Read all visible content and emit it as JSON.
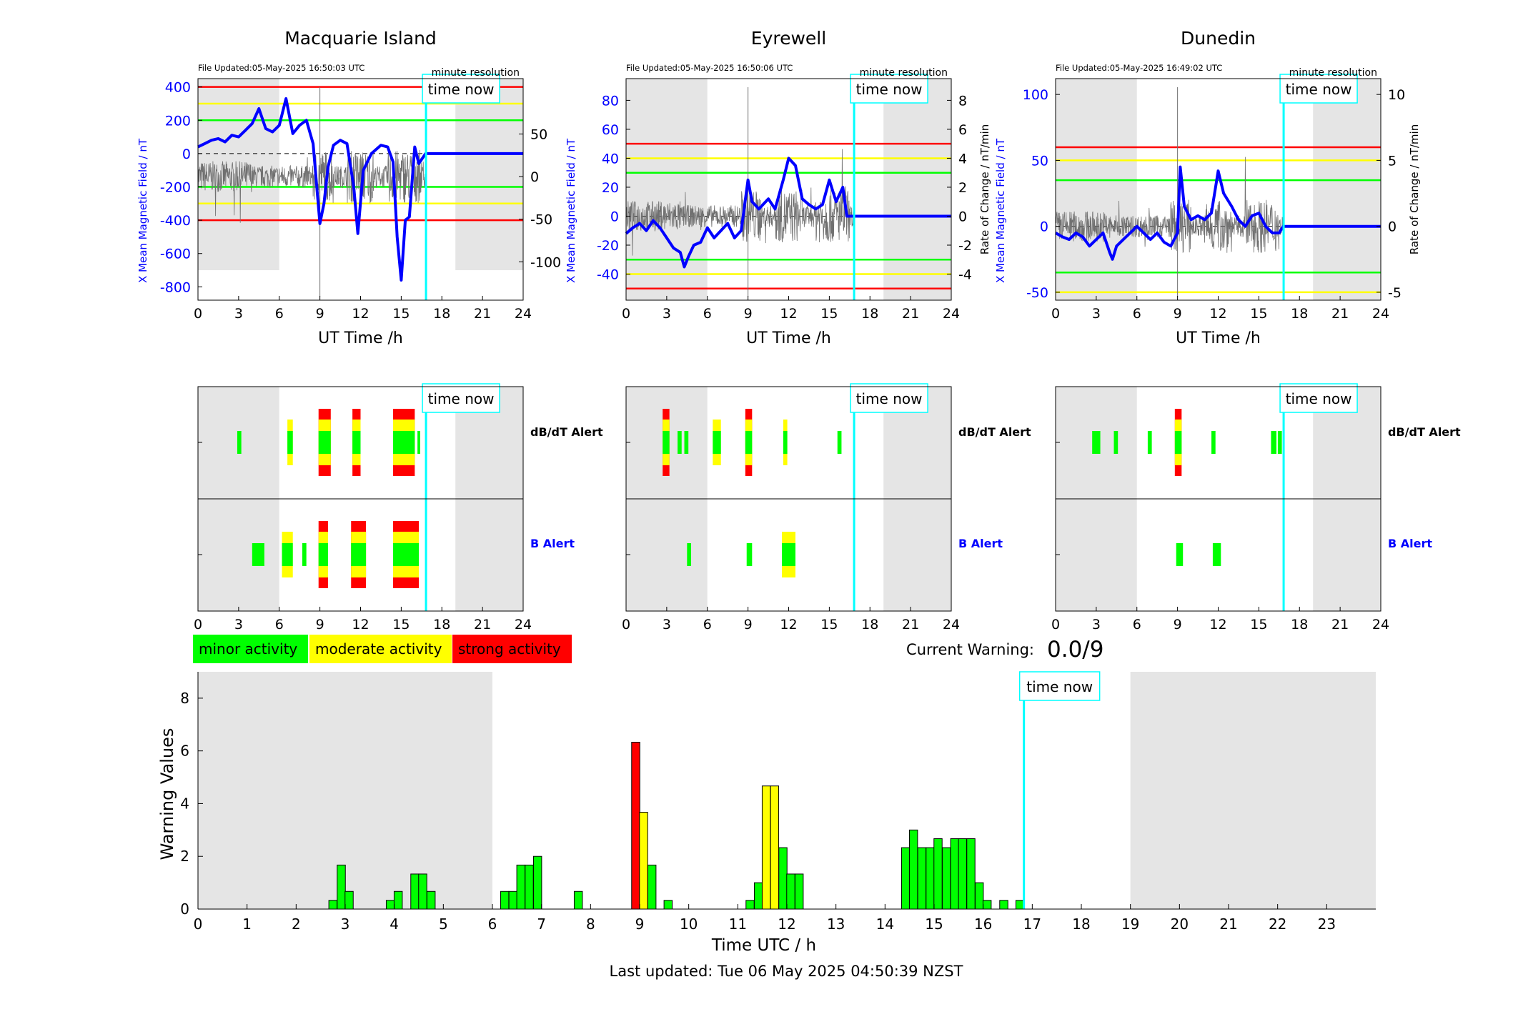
{
  "stations": [
    {
      "name": "Macquarie Island",
      "file_updated": "File Updated:05-May-2025 16:50:03 UTC",
      "resolution": "minute resolution",
      "time_now_label": "time now",
      "xlabel": "UT Time /h",
      "ylabel_left": "X Mean Magnetic Field / nT",
      "ylabel_right": "",
      "left_ylim": [
        -880,
        450
      ],
      "left_ticks": [
        "400",
        "200",
        "0",
        "-200",
        "-400",
        "-600",
        "-800"
      ],
      "left_tick_values": [
        400,
        200,
        0,
        -200,
        -400,
        -600,
        -800
      ],
      "right_ylim": [
        -145,
        115
      ],
      "right_ticks": [
        "50",
        "0",
        "-50",
        "-100"
      ],
      "right_tick_values": [
        50,
        0,
        -50,
        -100
      ],
      "thresholds": {
        "red": 400,
        "yellow": 300,
        "green": 200
      },
      "shade_ylim": [
        -700,
        450
      ],
      "mean_field": [
        [
          0,
          40
        ],
        [
          0.5,
          60
        ],
        [
          1,
          80
        ],
        [
          1.5,
          90
        ],
        [
          2,
          70
        ],
        [
          2.5,
          110
        ],
        [
          3,
          100
        ],
        [
          3.5,
          140
        ],
        [
          4,
          180
        ],
        [
          4.5,
          270
        ],
        [
          5,
          150
        ],
        [
          5.5,
          130
        ],
        [
          6,
          170
        ],
        [
          6.5,
          330
        ],
        [
          7,
          120
        ],
        [
          7.5,
          170
        ],
        [
          8,
          200
        ],
        [
          8.5,
          60
        ],
        [
          9,
          -420
        ],
        [
          9.3,
          -300
        ],
        [
          9.6,
          -80
        ],
        [
          10,
          50
        ],
        [
          10.5,
          80
        ],
        [
          11,
          60
        ],
        [
          11.5,
          -200
        ],
        [
          11.8,
          -480
        ],
        [
          12.2,
          -100
        ],
        [
          12.8,
          0
        ],
        [
          13.5,
          50
        ],
        [
          14,
          40
        ],
        [
          14.4,
          -50
        ],
        [
          14.7,
          -500
        ],
        [
          15,
          -760
        ],
        [
          15.3,
          -400
        ],
        [
          15.6,
          -380
        ],
        [
          16,
          40
        ],
        [
          16.3,
          -60
        ],
        [
          16.8,
          0
        ],
        [
          24,
          0
        ]
      ],
      "rate_of_change": "noisy trace",
      "dbdt_alerts": [
        [
          2.9,
          3.2,
          "g"
        ],
        [
          6.6,
          7.0,
          "gy"
        ],
        [
          8.9,
          9.8,
          "gyr"
        ],
        [
          11.4,
          12.0,
          "gyr"
        ],
        [
          14.4,
          16.0,
          "gyr"
        ],
        [
          16.2,
          16.4,
          "g"
        ]
      ],
      "b_alerts": [
        [
          4.0,
          4.9,
          "g"
        ],
        [
          6.2,
          7.0,
          "gy"
        ],
        [
          7.7,
          8.0,
          "g"
        ],
        [
          8.9,
          9.6,
          "gyr"
        ],
        [
          11.3,
          12.4,
          "gyr"
        ],
        [
          14.4,
          16.3,
          "gyr"
        ]
      ]
    },
    {
      "name": "Eyrewell",
      "file_updated": "File Updated:05-May-2025 16:50:06 UTC",
      "resolution": "minute resolution",
      "time_now_label": "time now",
      "xlabel": "UT Time /h",
      "ylabel_left": "X Mean Magnetic Field / nT",
      "ylabel_right": "Rate of Change / nT/min",
      "left_ylim": [
        -58,
        95
      ],
      "left_ticks": [
        "80",
        "60",
        "40",
        "20",
        "0",
        "-20",
        "-40"
      ],
      "left_tick_values": [
        80,
        60,
        40,
        20,
        0,
        -20,
        -40
      ],
      "right_ylim": [
        -5.8,
        9.5
      ],
      "right_ticks": [
        "8",
        "6",
        "4",
        "2",
        "0",
        "-2",
        "-4"
      ],
      "right_tick_values": [
        8,
        6,
        4,
        2,
        0,
        -2,
        -4
      ],
      "thresholds": {
        "red": 50,
        "yellow": 40,
        "green": 30
      },
      "shade_ylim": [
        -58,
        95
      ],
      "mean_field": [
        [
          0,
          -12
        ],
        [
          0.5,
          -8
        ],
        [
          1,
          -5
        ],
        [
          1.5,
          -10
        ],
        [
          2,
          -3
        ],
        [
          2.5,
          -8
        ],
        [
          3,
          -15
        ],
        [
          3.5,
          -22
        ],
        [
          4,
          -25
        ],
        [
          4.3,
          -35
        ],
        [
          4.6,
          -28
        ],
        [
          5,
          -20
        ],
        [
          5.5,
          -18
        ],
        [
          6,
          -8
        ],
        [
          6.5,
          -15
        ],
        [
          7,
          -10
        ],
        [
          7.5,
          -5
        ],
        [
          8,
          -15
        ],
        [
          8.5,
          -10
        ],
        [
          9,
          25
        ],
        [
          9.3,
          10
        ],
        [
          9.8,
          5
        ],
        [
          10.5,
          12
        ],
        [
          11,
          5
        ],
        [
          11.6,
          25
        ],
        [
          12,
          40
        ],
        [
          12.5,
          35
        ],
        [
          13,
          12
        ],
        [
          13.5,
          8
        ],
        [
          14,
          5
        ],
        [
          14.5,
          8
        ],
        [
          15,
          25
        ],
        [
          15.5,
          10
        ],
        [
          16,
          20
        ],
        [
          16.3,
          0
        ],
        [
          24,
          0
        ]
      ],
      "rate_of_change": "noisy trace",
      "dbdt_alerts": [
        [
          2.7,
          3.2,
          "gyr"
        ],
        [
          3.8,
          4.1,
          "g"
        ],
        [
          4.3,
          4.6,
          "g"
        ],
        [
          6.4,
          7.0,
          "gy"
        ],
        [
          8.8,
          9.3,
          "gyr"
        ],
        [
          11.6,
          11.9,
          "gy"
        ],
        [
          15.6,
          15.9,
          "g"
        ]
      ],
      "b_alerts": [
        [
          4.5,
          4.8,
          "g"
        ],
        [
          8.9,
          9.3,
          "g"
        ],
        [
          11.5,
          12.5,
          "gy"
        ]
      ]
    },
    {
      "name": "Dunedin",
      "file_updated": "File Updated:05-May-2025 16:49:02 UTC",
      "resolution": "minute resolution",
      "time_now_label": "time now",
      "xlabel": "UT Time /h",
      "ylabel_left": "X Mean Magnetic Field / nT",
      "ylabel_right": "Rate of Change / nT/min",
      "left_ylim": [
        -56,
        112
      ],
      "left_ticks": [
        "100",
        "50",
        "0",
        "-50"
      ],
      "left_tick_values": [
        100,
        50,
        0,
        -50
      ],
      "right_ylim": [
        -5.6,
        11.2
      ],
      "right_ticks": [
        "10",
        "5",
        "0",
        "-5"
      ],
      "right_tick_values": [
        10,
        5,
        0,
        -5
      ],
      "thresholds": {
        "red": 60,
        "yellow": 50,
        "green": 35
      },
      "shade_ylim": [
        -56,
        112
      ],
      "mean_field": [
        [
          0,
          -5
        ],
        [
          0.5,
          -8
        ],
        [
          1,
          -10
        ],
        [
          1.5,
          -5
        ],
        [
          2,
          -8
        ],
        [
          2.5,
          -15
        ],
        [
          3,
          -10
        ],
        [
          3.5,
          -5
        ],
        [
          4,
          -20
        ],
        [
          4.2,
          -25
        ],
        [
          4.5,
          -15
        ],
        [
          5,
          -10
        ],
        [
          5.5,
          -5
        ],
        [
          6,
          0
        ],
        [
          6.5,
          -5
        ],
        [
          7,
          -10
        ],
        [
          7.5,
          -5
        ],
        [
          8,
          -12
        ],
        [
          8.5,
          -15
        ],
        [
          9,
          -5
        ],
        [
          9.2,
          45
        ],
        [
          9.5,
          15
        ],
        [
          10,
          5
        ],
        [
          10.5,
          8
        ],
        [
          11,
          5
        ],
        [
          11.5,
          10
        ],
        [
          12,
          42
        ],
        [
          12.4,
          25
        ],
        [
          13,
          15
        ],
        [
          13.5,
          5
        ],
        [
          14,
          0
        ],
        [
          14.5,
          8
        ],
        [
          15,
          10
        ],
        [
          15.5,
          0
        ],
        [
          16,
          -5
        ],
        [
          16.5,
          -5
        ],
        [
          16.8,
          0
        ],
        [
          24,
          0
        ]
      ],
      "rate_of_change": "noisy trace",
      "dbdt_alerts": [
        [
          2.7,
          3.3,
          "g"
        ],
        [
          4.3,
          4.6,
          "g"
        ],
        [
          6.8,
          7.1,
          "g"
        ],
        [
          8.8,
          9.3,
          "gyr"
        ],
        [
          11.5,
          11.8,
          "g"
        ],
        [
          15.9,
          16.3,
          "g"
        ],
        [
          16.4,
          16.7,
          "g"
        ]
      ],
      "b_alerts": [
        [
          8.9,
          9.4,
          "g"
        ],
        [
          11.6,
          12.2,
          "g"
        ]
      ]
    }
  ],
  "alert_labels": {
    "dbdt": "dB/dT Alert",
    "b": "B Alert"
  },
  "axis_ticks_24": [
    "0",
    "3",
    "6",
    "9",
    "12",
    "15",
    "18",
    "21",
    "24"
  ],
  "legend": [
    {
      "label": "minor activity",
      "color": "#00ff00"
    },
    {
      "label": "moderate activity",
      "color": "#ffff00"
    },
    {
      "label": "strong activity",
      "color": "#ff0000"
    }
  ],
  "current_warning": {
    "label": "Current Warning:",
    "value": "0.0/9"
  },
  "time_now_hour": 16.83,
  "night_shading": {
    "start": 6,
    "end": 19
  },
  "colors": {
    "blue": "#0000ff",
    "cyan": "#00ffff",
    "grey_shade": "#e5e5e5",
    "green": "#00ff00",
    "yellow": "#ffff00",
    "red": "#ff0000"
  },
  "chart_data": {
    "type": "bar",
    "ylabel": "Warning Values",
    "xlabel": "Time UTC / h",
    "ylim": [
      0,
      9
    ],
    "xlim": [
      0,
      24
    ],
    "yticks": [
      "0",
      "2",
      "4",
      "6",
      "8"
    ],
    "xticks": [
      "0",
      "1",
      "2",
      "3",
      "4",
      "5",
      "6",
      "7",
      "8",
      "9",
      "10",
      "11",
      "12",
      "13",
      "14",
      "15",
      "16",
      "17",
      "18",
      "19",
      "20",
      "21",
      "22",
      "23"
    ],
    "bar_width_h": 0.1667,
    "bars": [
      {
        "x": 2.75,
        "v": 0.33,
        "c": "g"
      },
      {
        "x": 2.92,
        "v": 1.67,
        "c": "g"
      },
      {
        "x": 3.08,
        "v": 0.67,
        "c": "g"
      },
      {
        "x": 3.92,
        "v": 0.33,
        "c": "g"
      },
      {
        "x": 4.08,
        "v": 0.67,
        "c": "g"
      },
      {
        "x": 4.42,
        "v": 1.33,
        "c": "g"
      },
      {
        "x": 4.58,
        "v": 1.33,
        "c": "g"
      },
      {
        "x": 4.75,
        "v": 0.67,
        "c": "g"
      },
      {
        "x": 6.25,
        "v": 0.67,
        "c": "g"
      },
      {
        "x": 6.42,
        "v": 0.67,
        "c": "g"
      },
      {
        "x": 6.58,
        "v": 1.67,
        "c": "g"
      },
      {
        "x": 6.75,
        "v": 1.67,
        "c": "g"
      },
      {
        "x": 6.92,
        "v": 2.0,
        "c": "g"
      },
      {
        "x": 7.75,
        "v": 0.67,
        "c": "g"
      },
      {
        "x": 8.92,
        "v": 6.33,
        "c": "r"
      },
      {
        "x": 9.08,
        "v": 3.67,
        "c": "y"
      },
      {
        "x": 9.25,
        "v": 1.67,
        "c": "g"
      },
      {
        "x": 9.58,
        "v": 0.33,
        "c": "g"
      },
      {
        "x": 11.25,
        "v": 0.33,
        "c": "g"
      },
      {
        "x": 11.42,
        "v": 1.0,
        "c": "g"
      },
      {
        "x": 11.58,
        "v": 4.67,
        "c": "y"
      },
      {
        "x": 11.75,
        "v": 4.67,
        "c": "y"
      },
      {
        "x": 11.92,
        "v": 2.33,
        "c": "g"
      },
      {
        "x": 12.08,
        "v": 1.33,
        "c": "g"
      },
      {
        "x": 12.25,
        "v": 1.33,
        "c": "g"
      },
      {
        "x": 14.42,
        "v": 2.33,
        "c": "g"
      },
      {
        "x": 14.58,
        "v": 3.0,
        "c": "g"
      },
      {
        "x": 14.75,
        "v": 2.33,
        "c": "g"
      },
      {
        "x": 14.92,
        "v": 2.33,
        "c": "g"
      },
      {
        "x": 15.08,
        "v": 2.67,
        "c": "g"
      },
      {
        "x": 15.25,
        "v": 2.33,
        "c": "g"
      },
      {
        "x": 15.42,
        "v": 2.67,
        "c": "g"
      },
      {
        "x": 15.58,
        "v": 2.67,
        "c": "g"
      },
      {
        "x": 15.75,
        "v": 2.67,
        "c": "g"
      },
      {
        "x": 15.92,
        "v": 1.0,
        "c": "g"
      },
      {
        "x": 16.08,
        "v": 0.33,
        "c": "g"
      },
      {
        "x": 16.42,
        "v": 0.33,
        "c": "g"
      },
      {
        "x": 16.75,
        "v": 0.33,
        "c": "g"
      }
    ],
    "night_shading_hours": [
      [
        0,
        6
      ],
      [
        19,
        24
      ]
    ],
    "time_now_label": "time now"
  },
  "footer": "Last updated: Tue 06 May 2025 04:50:39 NZST"
}
